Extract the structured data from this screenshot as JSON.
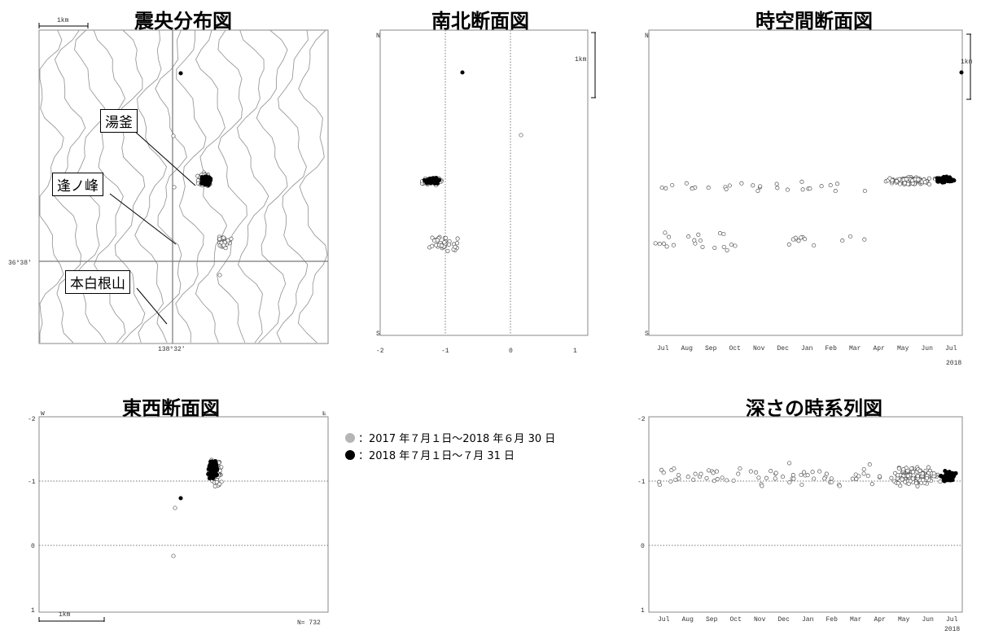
{
  "titles": {
    "epicenter": "震央分布図",
    "ns_section": "南北断面図",
    "spacetime": "時空間断面図",
    "ew_section": "東西断面図",
    "depth_ts": "深さの時系列図"
  },
  "map": {
    "scale_label": "1km",
    "lat_label": "36°38'",
    "lon_label": "138°32'",
    "callouts": {
      "yugama": "湯釜",
      "ainomine": "逢ノ峰",
      "motoshirane": "本白根山"
    }
  },
  "legend": {
    "gray_label": "：2017 年７月１日～2018 年６月 30 日",
    "black_label": "：2018 年７月１日～７月 31 日",
    "gray_color": "#b5b5b5",
    "black_color": "#000000"
  },
  "ns_axis": {
    "top": "N",
    "bottom": "S",
    "ticks": [
      "-2",
      "-1",
      "0",
      "1"
    ],
    "scale_label": "1km"
  },
  "spacetime_axis": {
    "top": "N",
    "bottom": "S",
    "months": [
      "Jul",
      "Aug",
      "Sep",
      "Oct",
      "Nov",
      "Dec",
      "Jan",
      "Feb",
      "Mar",
      "Apr",
      "May",
      "Jun",
      "Jul"
    ],
    "year": "2018",
    "scale_label": "1km"
  },
  "ew_axis": {
    "left": "W",
    "right": "E",
    "yticks": [
      "-2",
      "-1",
      "0",
      "1"
    ],
    "scale_label": "1km",
    "count": "N= 732"
  },
  "depth_axis": {
    "yticks": [
      "-2",
      "-1",
      "0",
      "1"
    ],
    "months": [
      "Jul",
      "Aug",
      "Sep",
      "Oct",
      "Nov",
      "Dec",
      "Jan",
      "Feb",
      "Mar",
      "Apr",
      "May",
      "Jun",
      "Jul"
    ],
    "year": "2018"
  },
  "chart_data": [
    {
      "type": "scatter",
      "panel": "epicenter map",
      "title": "震央分布図",
      "series": [
        {
          "name": "2017年7月1日～2018年6月30日",
          "description": "cluster beneath 湯釜 and a smaller cluster to the southeast"
        },
        {
          "name": "2018年7月1日～7月31日",
          "description": "dense cluster beneath 湯釜"
        }
      ]
    },
    {
      "type": "scatter",
      "panel": "north-south section",
      "title": "南北断面図",
      "xlim": [
        -2,
        1
      ],
      "series": [
        {
          "name": "gray",
          "cluster_center": [
            -1.2,
            -0.5
          ],
          "cluster2_center": [
            -0.95,
            0.35
          ]
        },
        {
          "name": "black",
          "cluster_center": [
            -1.1,
            -0.5
          ],
          "outlier": [
            -0.75,
            -1.6
          ]
        }
      ]
    },
    {
      "type": "scatter",
      "panel": "space-time section",
      "title": "時空間断面図",
      "xticks": [
        "Jul",
        "Aug",
        "Sep",
        "Oct",
        "Nov",
        "Dec",
        "Jan",
        "Feb",
        "Mar",
        "Apr",
        "May",
        "Jun",
        "Jul"
      ]
    },
    {
      "type": "scatter",
      "panel": "east-west section",
      "title": "東西断面図",
      "ylim": [
        -2,
        1
      ],
      "n": 732
    },
    {
      "type": "scatter",
      "panel": "depth time series",
      "title": "深さの時系列図",
      "ylim": [
        -2,
        1
      ],
      "xticks": [
        "Jul",
        "Aug",
        "Sep",
        "Oct",
        "Nov",
        "Dec",
        "Jan",
        "Feb",
        "Mar",
        "Apr",
        "May",
        "Jun",
        "Jul"
      ]
    }
  ]
}
